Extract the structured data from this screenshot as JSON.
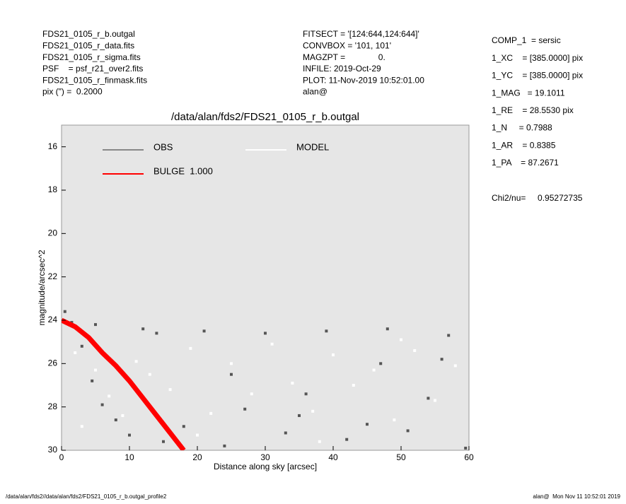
{
  "header": {
    "left": [
      "FDS21_0105_r_b.outgal",
      "FDS21_0105_r_data.fits",
      "FDS21_0105_r_sigma.fits",
      "PSF    = psf_r21_over2.fits",
      "FDS21_0105_r_finmask.fits",
      "pix (\") =  0.2000"
    ],
    "center": [
      "FITSECT = '[124:644,124:644]'",
      "CONVBOX = '101, 101'",
      "MAGZPT =              0.",
      "INFILE: 2019-Oct-29",
      "PLOT: 11-Nov-2019 10:52:01.00",
      "alan@"
    ],
    "right": [
      "COMP_1  = sersic",
      "1_XC    = [385.0000] pix",
      "1_YC    = [385.0000] pix",
      "1_MAG   = 19.1011",
      "1_RE    = 28.5530 pix",
      "1_N     = 0.7988",
      "1_AR    = 0.8385",
      "1_PA    = 87.2671"
    ],
    "chi2": "Chi2/nu=     0.95272735"
  },
  "footer": {
    "left": "/data/alan/fds2//data/alan/fds2/FDS21_0105_r_b.outgal_profile2",
    "right": "alan@  Mon Nov 11 10:52:01 2019"
  },
  "chart_data": {
    "type": "scatter",
    "title": "/data/alan/fds2/FDS21_0105_r_b.outgal",
    "xlabel": "Distance along sky [arcsec]",
    "ylabel": "magnitude/arcsec^2",
    "xlim": [
      0,
      60
    ],
    "ylim": [
      30,
      15
    ],
    "xticks": [
      0,
      10,
      20,
      30,
      40,
      50,
      60
    ],
    "yticks": [
      16,
      18,
      20,
      22,
      24,
      26,
      28,
      30
    ],
    "series": [
      {
        "name": "OBS",
        "color": "#555555",
        "mode": "points",
        "x": [
          0.5,
          1.5,
          3,
          4.5,
          6,
          8,
          10,
          12,
          15,
          18,
          21,
          24,
          27,
          30,
          33,
          36,
          39,
          42,
          45,
          48,
          51,
          54,
          57,
          59.5,
          5,
          14,
          25,
          35,
          47,
          56
        ],
        "values": [
          23.6,
          24.1,
          25.2,
          26.8,
          27.9,
          28.6,
          29.3,
          24.4,
          29.6,
          28.9,
          24.5,
          29.8,
          28.1,
          24.6,
          29.2,
          27.4,
          24.5,
          29.5,
          28.8,
          24.4,
          29.1,
          27.6,
          24.7,
          29.9,
          24.2,
          24.6,
          26.5,
          28.4,
          26.0,
          25.8
        ]
      },
      {
        "name": "MODEL",
        "color": "#ffffff",
        "mode": "points",
        "x": [
          2,
          5,
          7,
          9,
          11,
          13,
          16,
          19,
          22,
          25,
          28,
          31,
          34,
          37,
          40,
          43,
          46,
          49,
          52,
          55,
          58,
          3,
          20,
          38,
          50
        ],
        "values": [
          25.5,
          26.3,
          27.5,
          28.4,
          25.9,
          26.5,
          27.2,
          25.3,
          28.3,
          26.0,
          27.4,
          25.1,
          26.9,
          28.2,
          25.6,
          27.0,
          26.3,
          28.6,
          25.4,
          27.7,
          26.1,
          28.9,
          29.3,
          29.6,
          24.9
        ]
      },
      {
        "name": "BULGE  1.000",
        "color": "#ff0000",
        "mode": "line",
        "x": [
          0,
          2,
          4,
          6,
          8,
          10,
          12,
          14,
          16,
          18
        ],
        "values": [
          24,
          24.3,
          24.8,
          25.5,
          26.1,
          26.8,
          27.6,
          28.4,
          29.2,
          30
        ]
      }
    ]
  }
}
